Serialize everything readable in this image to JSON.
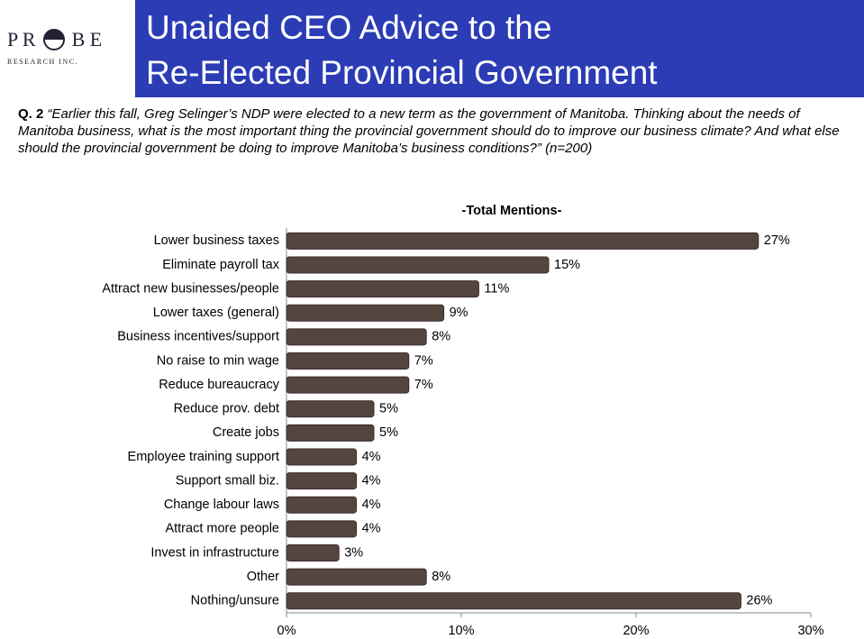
{
  "logo": {
    "left": "P R",
    "right": "B E",
    "sub": "RESEARCH INC."
  },
  "header": {
    "title_lines": [
      "Unaided CEO Advice to the",
      "Re-Elected Provincial Government"
    ]
  },
  "question": {
    "label": "Q. 2",
    "text": "“Earlier this fall, Greg Selinger’s NDP were elected to a new term as the government of Manitoba.  Thinking about the needs of Manitoba business, what is the most important thing the provincial government should do to improve our business climate?  And what else should the provincial government be doing to improve Manitoba’s business conditions?” (n=200)"
  },
  "chart_data": {
    "type": "hbar",
    "title": "-Total Mentions-",
    "categories": [
      "Lower business taxes",
      "Eliminate payroll tax",
      "Attract new businesses/people",
      "Lower taxes (general)",
      "Business incentives/support",
      "No raise to min wage",
      "Reduce bureaucracy",
      "Reduce prov. debt",
      "Create jobs",
      "Employee training support",
      "Support small biz.",
      "Change labour laws",
      "Attract more people",
      "Invest in infrastructure",
      "Other",
      "Nothing/unsure"
    ],
    "values": [
      27,
      15,
      11,
      9,
      8,
      7,
      7,
      5,
      5,
      4,
      4,
      4,
      4,
      3,
      8,
      26
    ],
    "value_labels": [
      "27%",
      "15%",
      "11%",
      "9%",
      "8%",
      "7%",
      "7%",
      "5%",
      "5%",
      "4%",
      "4%",
      "4%",
      "4%",
      "3%",
      "8%",
      "26%"
    ],
    "color": "#54453f",
    "xlim": [
      0,
      30
    ],
    "xticks": [
      {
        "value": 0,
        "label": "0%"
      },
      {
        "value": 10,
        "label": "10%"
      },
      {
        "value": 20,
        "label": "20%"
      },
      {
        "value": 30,
        "label": "30%"
      }
    ]
  }
}
